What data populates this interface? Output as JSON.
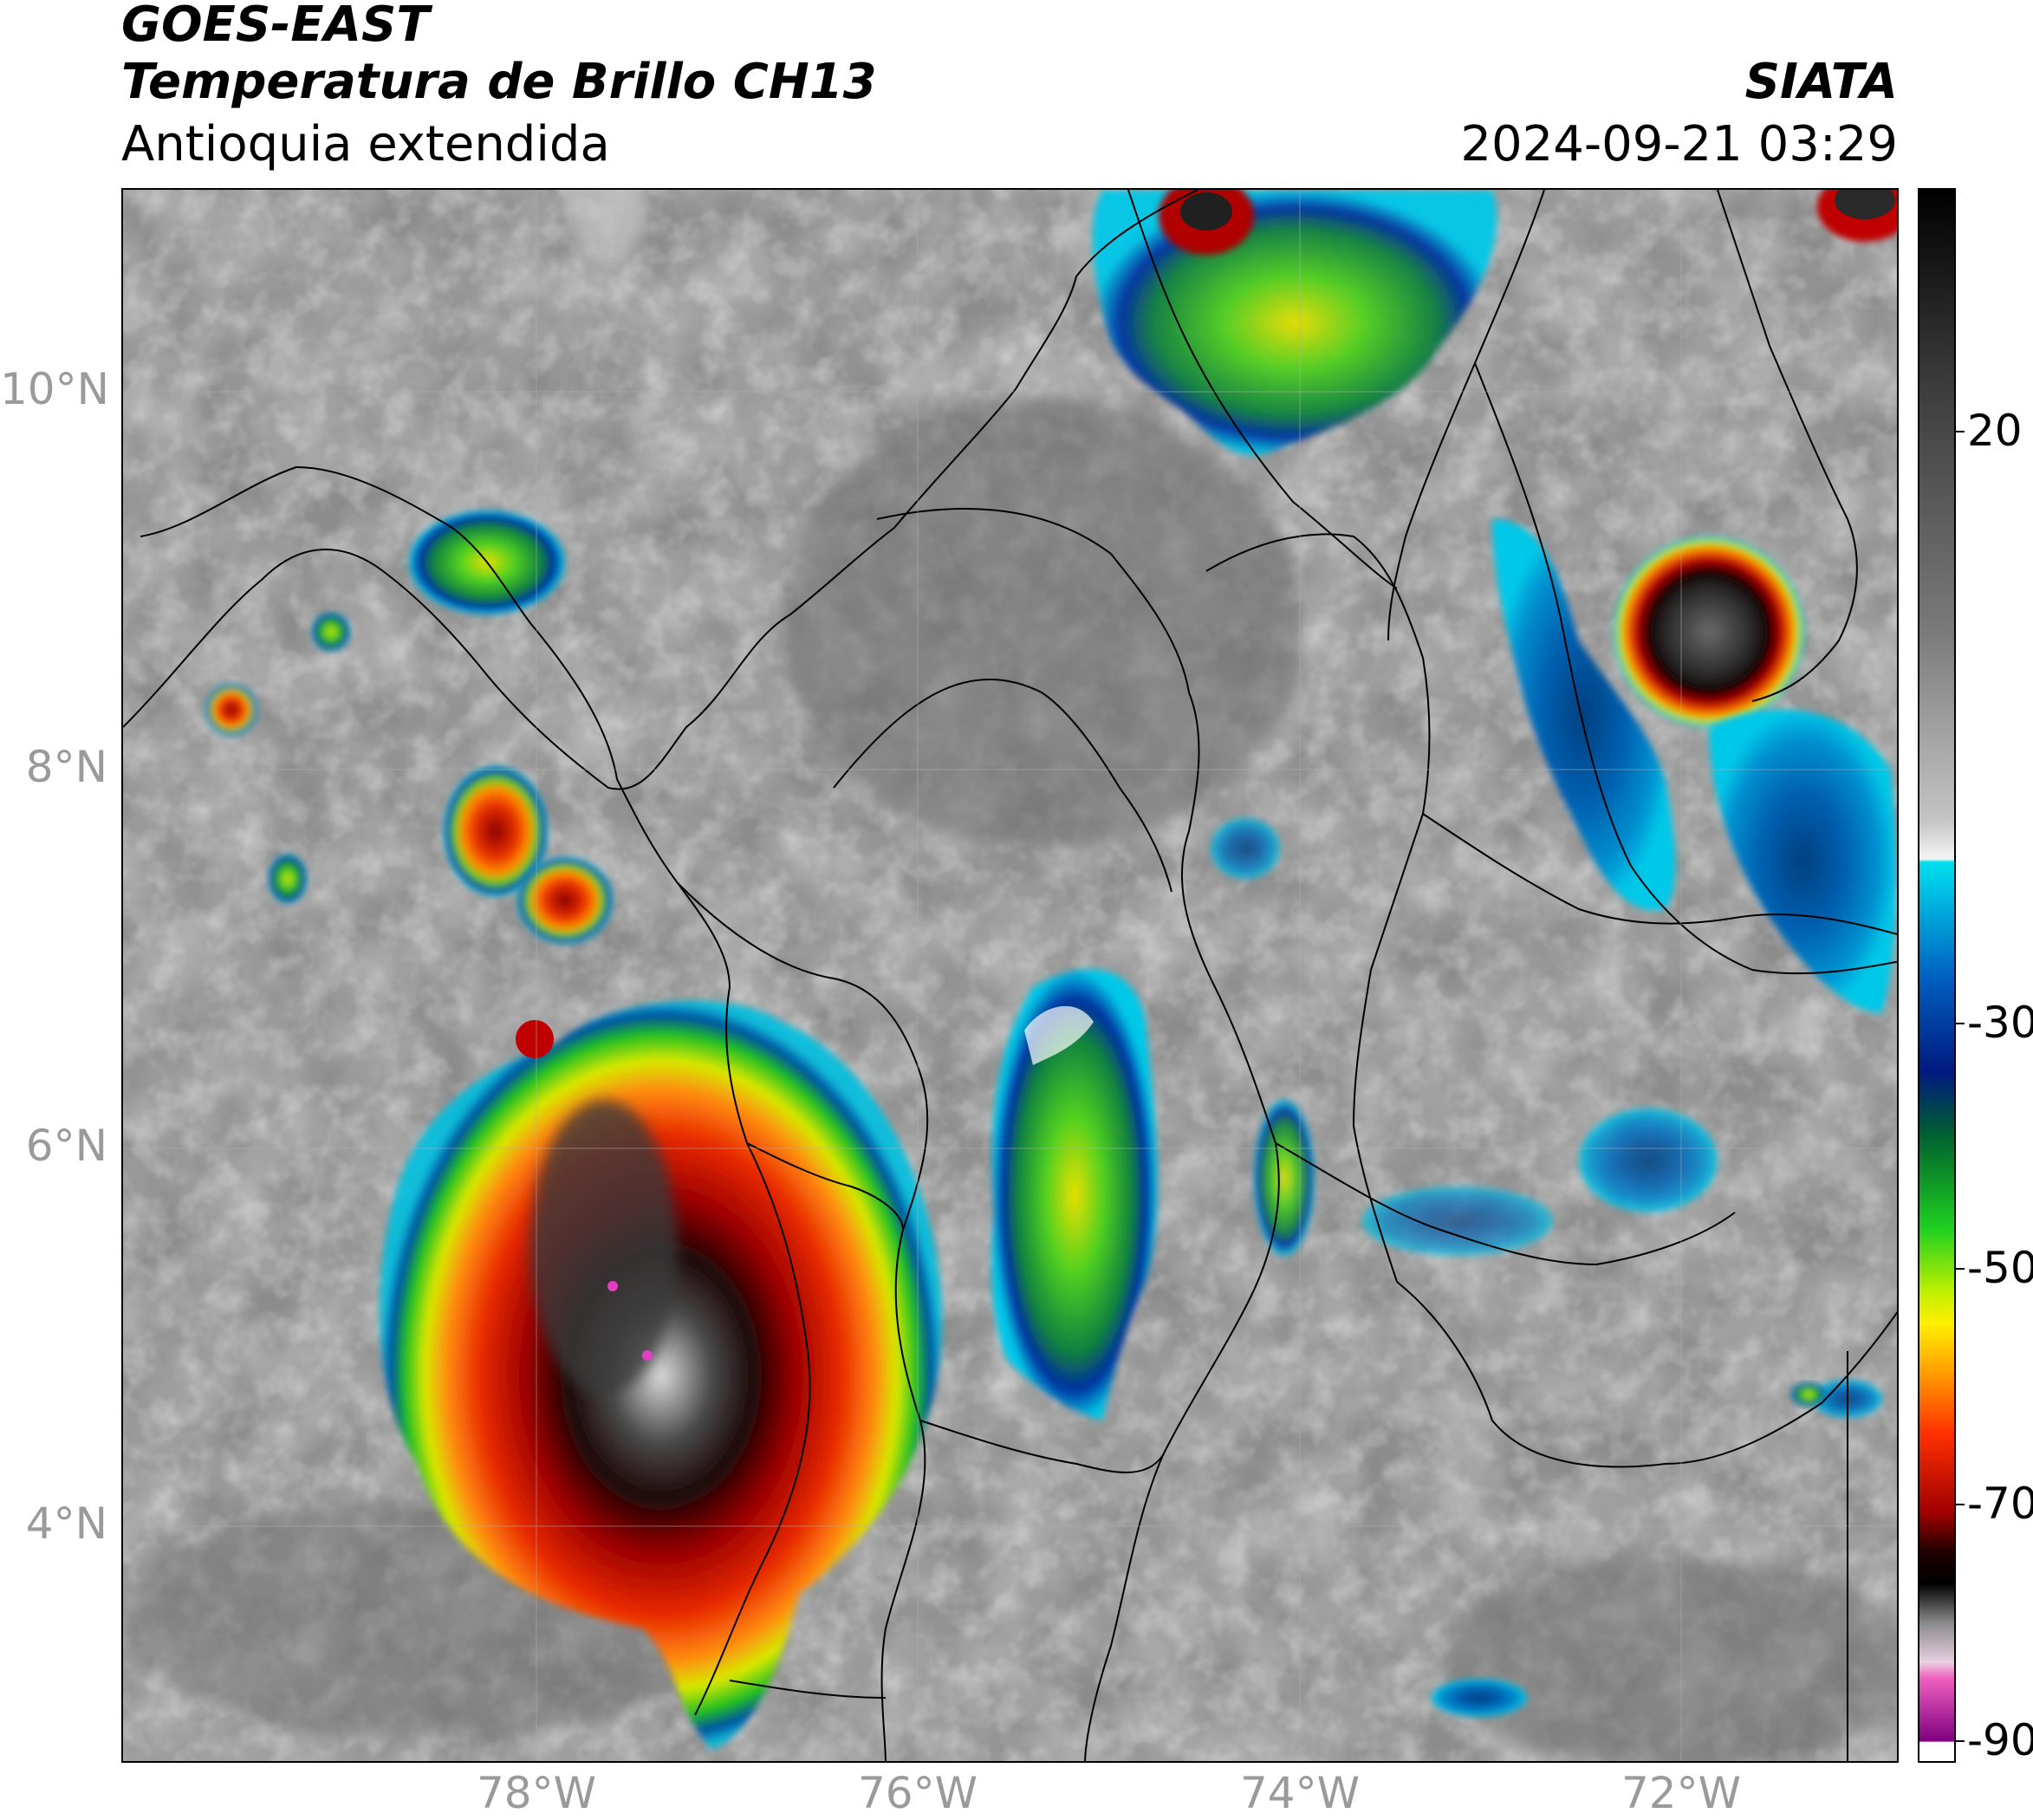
{
  "header": {
    "satellite": "GOES-EAST",
    "product": "Temperatura de Brillo CH13",
    "region": "Antioquia extendida",
    "organization": "SIATA",
    "timestamp": "2024-09-21 03:29"
  },
  "axes": {
    "latitude_labels": [
      "10°N",
      "8°N",
      "6°N",
      "4°N"
    ],
    "longitude_labels": [
      "78°W",
      "76°W",
      "74°W",
      "72°W"
    ]
  },
  "colorbar": {
    "tick_labels": [
      "20",
      "-30",
      "-50",
      "-70",
      "-90"
    ],
    "tick_values": [
      20,
      -30,
      -50,
      -70,
      -90
    ],
    "range": [
      35,
      -92
    ]
  },
  "map": {
    "lat_range": [
      2.6,
      11.0
    ],
    "lon_range": [
      -80.2,
      -70.9
    ],
    "gridlines": true,
    "storm_cells": [
      {
        "name": "pacific-large-system",
        "lat": 5.3,
        "lon": -77.9,
        "min_temp": -85
      },
      {
        "name": "central-valley-band",
        "lat": 6.0,
        "lon": -75.2,
        "min_temp": -45
      },
      {
        "name": "northeast-cell",
        "lat": 9.6,
        "lon": -71.7,
        "min_temp": -75
      },
      {
        "name": "panama-cluster",
        "lat": 7.7,
        "lon": -78.1,
        "min_temp": -65
      },
      {
        "name": "caribbean-north-cell",
        "lat": 10.9,
        "lon": -74.5,
        "min_temp": -70
      }
    ]
  }
}
